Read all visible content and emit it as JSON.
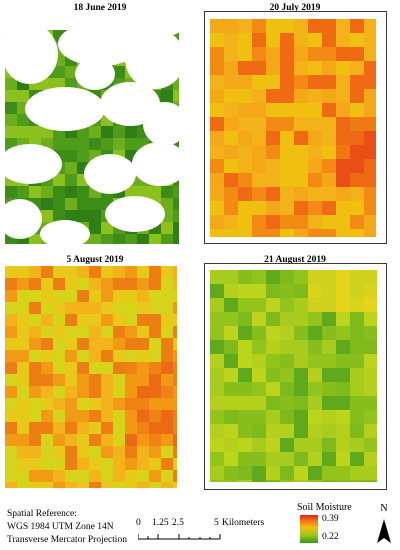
{
  "panels": [
    {
      "title": "18 June 2019",
      "palette": "green-cloud"
    },
    {
      "title": "20 July 2019",
      "palette": "orange"
    },
    {
      "title": "5 August 2019",
      "palette": "orange-yellow"
    },
    {
      "title": "21 August 2019",
      "palette": "green-yellow"
    }
  ],
  "legend": {
    "spatial_reference": "Spatial Reference:",
    "datum": "WGS 1984 UTM Zone 14N",
    "projection": "Transverse Mercator Projection",
    "ramp_title": "Soil Moisture",
    "ramp_max": "0.39",
    "ramp_min": "0.22",
    "ramp_colors": [
      "#e02020",
      "#f07a10",
      "#f0c010",
      "#9cc51c",
      "#2f9a1c"
    ],
    "scale_ticks": [
      "0",
      "1.25",
      "2.5",
      "5"
    ],
    "scale_unit": "Kilometers",
    "north_label": "N"
  }
}
